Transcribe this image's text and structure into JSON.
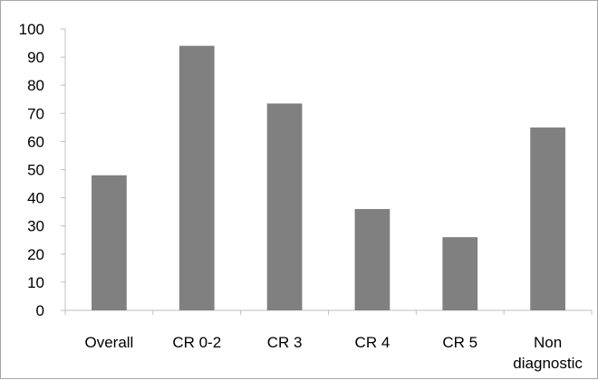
{
  "chart_data": {
    "type": "bar",
    "categories": [
      [
        "Overall"
      ],
      [
        "CR 0-2"
      ],
      [
        "CR 3"
      ],
      [
        "CR 4"
      ],
      [
        "CR 5"
      ],
      [
        "Non",
        "diagnostic"
      ]
    ],
    "values": [
      48,
      94,
      73.5,
      36,
      26,
      65
    ],
    "yticks": [
      "0",
      "10",
      "20",
      "30",
      "40",
      "50",
      "60",
      "70",
      "80",
      "90",
      "100"
    ],
    "ylim": [
      0,
      100
    ],
    "grid": false,
    "bar_color": "#808080",
    "axis_color": "#bfbfbf"
  }
}
